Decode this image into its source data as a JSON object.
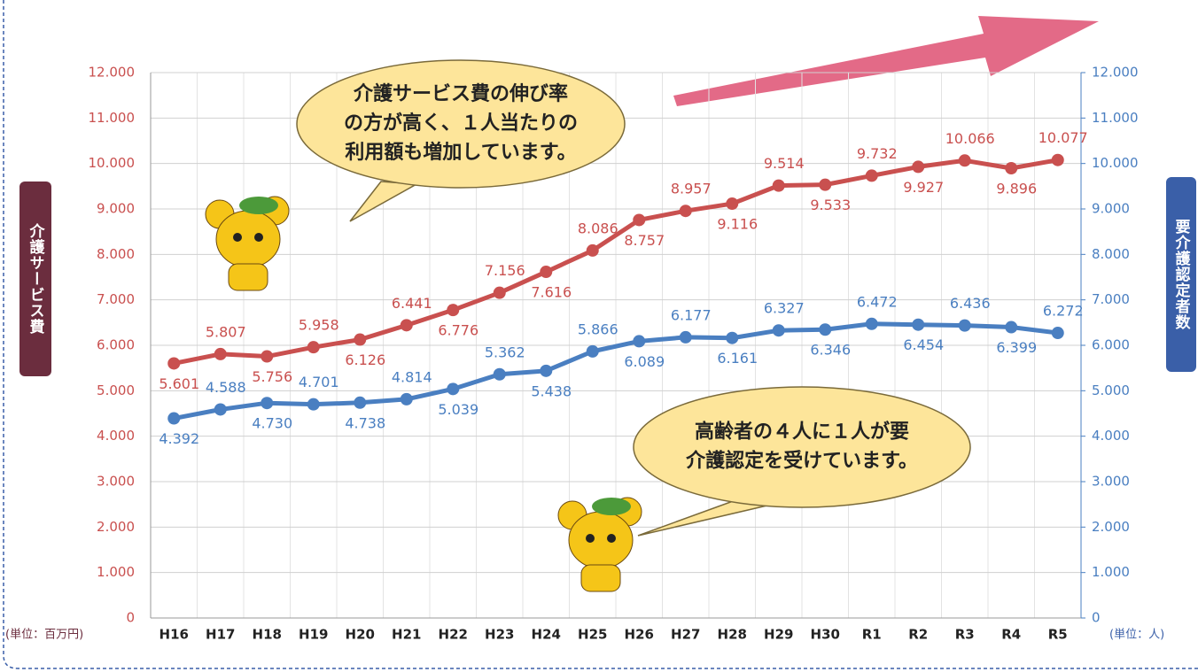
{
  "chart_data": {
    "type": "line",
    "y_axis_label": "介護サービス費",
    "y2_axis_label": "要介護認定者数",
    "y_unit_label": "(単位：百万円)",
    "y2_unit_label": "(単位：人)",
    "categories": [
      "H16",
      "H17",
      "H18",
      "H19",
      "H20",
      "H21",
      "H22",
      "H23",
      "H24",
      "H25",
      "H26",
      "H27",
      "H28",
      "H29",
      "H30",
      "R1",
      "R2",
      "R3",
      "R4",
      "R5"
    ],
    "series": [
      {
        "name": "介護サービス費",
        "color": "#c9504f",
        "axis": "y",
        "values": [
          5601,
          5807,
          5756,
          5958,
          6126,
          6441,
          6776,
          7156,
          7616,
          8086,
          8757,
          8957,
          9116,
          9514,
          9533,
          9732,
          9927,
          10066,
          9896,
          10077
        ],
        "value_labels": [
          "5.601",
          "5.807",
          "5.756",
          "5.958",
          "6.126",
          "6.441",
          "6.776",
          "7.156",
          "7.616",
          "8.086",
          "8.757",
          "8.957",
          "9.116",
          "9.514",
          "9.533",
          "9.732",
          "9.927",
          "10.066",
          "9.896",
          "10.077"
        ]
      },
      {
        "name": "要介護認定者数",
        "color": "#4a7fc1",
        "axis": "y2",
        "values": [
          4392,
          4588,
          4730,
          4701,
          4738,
          4814,
          5039,
          5362,
          5438,
          5866,
          6089,
          6177,
          6161,
          6327,
          6346,
          6472,
          6454,
          6436,
          6399,
          6272
        ],
        "value_labels": [
          "4.392",
          "4.588",
          "4.730",
          "4.701",
          "4.738",
          "4.814",
          "5.039",
          "5.362",
          "5.438",
          "5.866",
          "6.089",
          "6.177",
          "6.161",
          "6.327",
          "6.346",
          "6.472",
          "6.454",
          "6.436",
          "6.399",
          "6.272"
        ]
      }
    ],
    "ylim": [
      0,
      12000
    ],
    "yticks": [
      0,
      {
        "value": 1000,
        "label": "1.000"
      },
      {
        "value": 2000,
        "label": "2.000"
      },
      {
        "value": 3000,
        "label": "3.000"
      },
      {
        "value": 4000,
        "label": "4.000"
      },
      {
        "value": 5000,
        "label": "5.000"
      },
      {
        "value": 6000,
        "label": "6.000"
      },
      {
        "value": 7000,
        "label": "7.000"
      },
      {
        "value": 8000,
        "label": "8.000"
      },
      {
        "value": 9000,
        "label": "9.000"
      },
      {
        "value": 10000,
        "label": "10.000"
      },
      {
        "value": 11000,
        "label": "11.000"
      },
      {
        "value": 12000,
        "label": "12.000"
      }
    ],
    "y2lim": [
      0,
      12000
    ],
    "y2ticks": [
      0,
      {
        "value": 1000,
        "label": "1.000"
      },
      {
        "value": 2000,
        "label": "2.000"
      },
      {
        "value": 3000,
        "label": "3.000"
      },
      {
        "value": 4000,
        "label": "4.000"
      },
      {
        "value": 5000,
        "label": "5.000"
      },
      {
        "value": 6000,
        "label": "6.000"
      },
      {
        "value": 7000,
        "label": "7.000"
      },
      {
        "value": 8000,
        "label": "8.000"
      },
      {
        "value": 9000,
        "label": "9.000"
      },
      {
        "value": 10000,
        "label": "10.000"
      },
      {
        "value": 11000,
        "label": "11.000"
      },
      {
        "value": 12000,
        "label": "12.000"
      }
    ],
    "grid": true,
    "annotations": [
      {
        "lines": [
          "介護サービス費の伸び率",
          "の方が高く、１人当たりの",
          "利用額も増加しています。"
        ]
      },
      {
        "lines": [
          "高齢者の４人に１人が要",
          "介護認定を受けています。"
        ]
      }
    ]
  }
}
